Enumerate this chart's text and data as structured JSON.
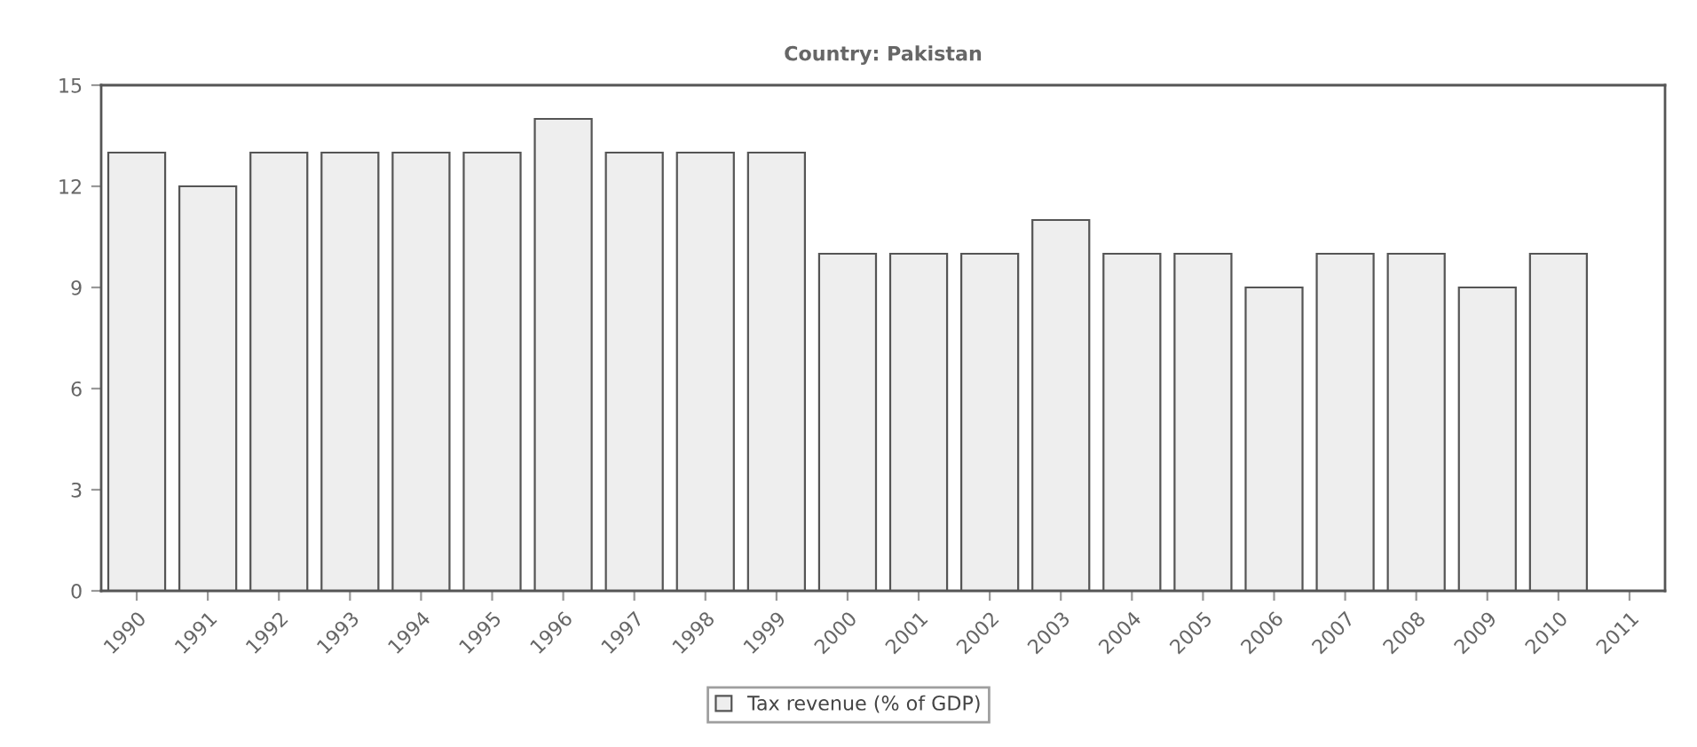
{
  "chart_data": {
    "type": "bar",
    "title": "Country: Pakistan",
    "categories": [
      "1990",
      "1991",
      "1992",
      "1993",
      "1994",
      "1995",
      "1996",
      "1997",
      "1998",
      "1999",
      "2000",
      "2001",
      "2002",
      "2003",
      "2004",
      "2005",
      "2006",
      "2007",
      "2008",
      "2009",
      "2010",
      "2011"
    ],
    "series": [
      {
        "name": "Tax revenue (% of GDP)",
        "color": "#eeeeee",
        "values": [
          13,
          12,
          13,
          13,
          13,
          13,
          14,
          13,
          13,
          13,
          10,
          10,
          10,
          11,
          10,
          10,
          9,
          10,
          10,
          9,
          10,
          null
        ]
      }
    ],
    "ylim": [
      0,
      15
    ],
    "yticks": [
      0,
      3,
      6,
      9,
      12,
      15
    ],
    "grid": false,
    "legend": "bottom"
  }
}
